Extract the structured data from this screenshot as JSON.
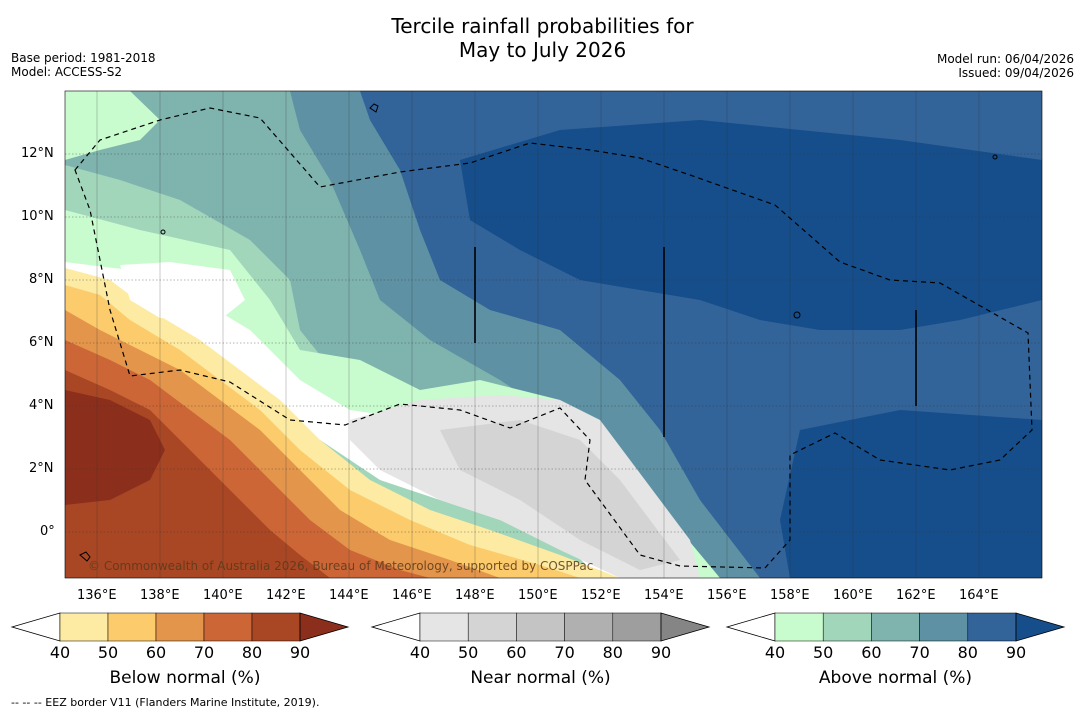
{
  "title_line1": "Tercile rainfall probabilities for",
  "title_line2": "May to July 2026",
  "base_period": "Base period: 1981-2018",
  "model": "Model: ACCESS-S2",
  "model_run": "Model run: 06/04/2026",
  "issued": "Issued: 09/04/2026",
  "copyright": "© Commonwealth of Australia 2026, Bureau of Meteorology, supported by COSPPac",
  "footer": "--  --  -- EEZ border V11 (Flanders Marine Institute, 2019).",
  "map": {
    "lat_labels": [
      "12°N",
      "10°N",
      "8°N",
      "6°N",
      "4°N",
      "2°N",
      "0°"
    ],
    "lon_labels": [
      "136°E",
      "138°E",
      "140°E",
      "142°E",
      "144°E",
      "146°E",
      "148°E",
      "150°E",
      "152°E",
      "154°E",
      "156°E",
      "158°E",
      "160°E",
      "162°E",
      "164°E"
    ]
  },
  "colorbars": [
    {
      "label": "Below normal (%)",
      "ticks": [
        "40",
        "50",
        "60",
        "70",
        "80",
        "90"
      ],
      "colors": [
        "#ffffff",
        "#fdeba3",
        "#fccb6b",
        "#e3954b",
        "#cc6636",
        "#a94724",
        "#8b2f1c"
      ]
    },
    {
      "label": "Near normal (%)",
      "ticks": [
        "40",
        "50",
        "60",
        "70",
        "80",
        "90"
      ],
      "colors": [
        "#ffffff",
        "#e5e5e5",
        "#d4d4d4",
        "#c4c4c4",
        "#b0b0b0",
        "#9e9e9e",
        "#858585"
      ]
    },
    {
      "label": "Above normal (%)",
      "ticks": [
        "40",
        "50",
        "60",
        "70",
        "80",
        "90"
      ],
      "colors": [
        "#ffffff",
        "#c8fbcd",
        "#a2d6bb",
        "#7fb3ad",
        "#5d91a3",
        "#326399",
        "#154e8a"
      ]
    }
  ]
}
